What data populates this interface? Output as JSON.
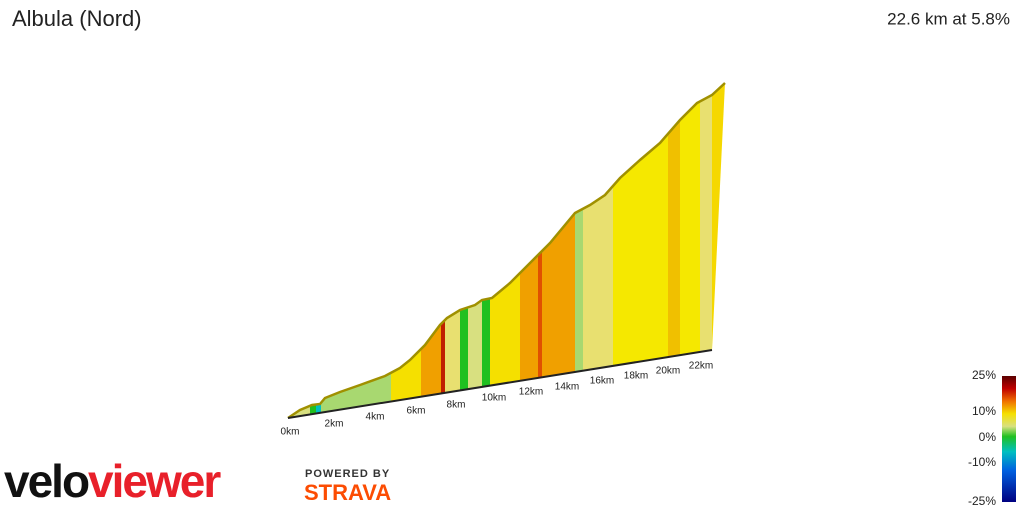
{
  "header": {
    "title": "Albula (Nord)",
    "summary": "22.6 km at 5.8%"
  },
  "distance_labels": [
    "0km",
    "2km",
    "4km",
    "6km",
    "8km",
    "10km",
    "12km",
    "14km",
    "16km",
    "18km",
    "20km",
    "22km"
  ],
  "gradient_legend": [
    "25%",
    "10%",
    "0%",
    "-10%",
    "-25%"
  ],
  "logo": {
    "velo": "velo",
    "viewer": "viewer",
    "powered_by": "POWERED BY",
    "strava": "STRAVA"
  }
}
